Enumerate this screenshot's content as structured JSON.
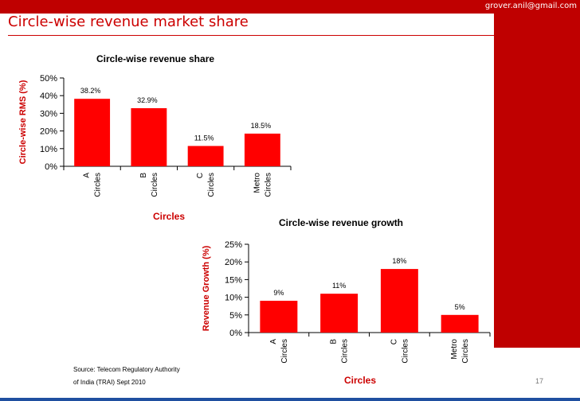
{
  "header": {
    "email": "grover.anil@gmail.com",
    "title": "Circle-wise revenue market share"
  },
  "footer": {
    "source_line1": "Source: Telecom Regulatory Authority",
    "source_line2": "of India (TRAI) Sept 2010",
    "page_number": "17"
  },
  "colors": {
    "bar": "#ff0000",
    "accent": "#cc0000",
    "band": "#bf0000",
    "footer_line": "#1f4fa0"
  },
  "chart_data": [
    {
      "type": "bar",
      "title": "Circle-wise revenue share",
      "xlabel": "Circles",
      "ylabel": "Circle-wise RMS (%)",
      "categories": [
        [
          "A",
          "Circles"
        ],
        [
          "B",
          "Circles"
        ],
        [
          "C",
          "Circles"
        ],
        [
          "Metro",
          "Circles"
        ]
      ],
      "values": [
        38.2,
        32.9,
        11.5,
        18.5
      ],
      "labels": [
        "38.2%",
        "32.9%",
        "11.5%",
        "18.5%"
      ],
      "yticks": [
        "0%",
        "10%",
        "20%",
        "30%",
        "40%",
        "50%"
      ],
      "ylim": [
        0,
        50
      ]
    },
    {
      "type": "bar",
      "title": "Circle-wise revenue growth",
      "xlabel": "Circles",
      "ylabel": "Revenue Growth (%)",
      "categories": [
        [
          "A",
          "Circles"
        ],
        [
          "B",
          "Circles"
        ],
        [
          "C",
          "Circles"
        ],
        [
          "Metro",
          "Circles"
        ]
      ],
      "values": [
        9,
        11,
        18,
        5
      ],
      "labels": [
        "9%",
        "11%",
        "18%",
        "5%"
      ],
      "yticks": [
        "0%",
        "5%",
        "10%",
        "15%",
        "20%",
        "25%"
      ],
      "ylim": [
        0,
        25
      ]
    }
  ]
}
